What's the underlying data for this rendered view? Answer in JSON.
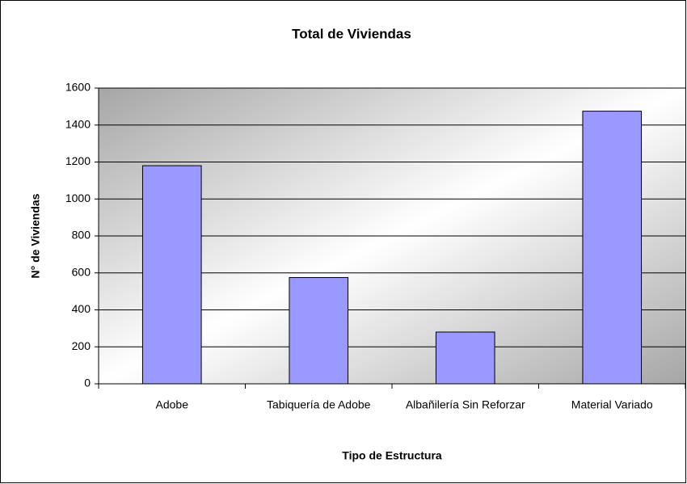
{
  "chart_data": {
    "type": "bar",
    "title": "Total de Viviendas",
    "x_label": "Tipo de Estructura",
    "y_label": "N° de Viviendas",
    "categories": [
      "Adobe",
      "Tabiquería de Adobe",
      "Albañilería Sin Reforzar",
      "Material Variado"
    ],
    "values": [
      1180,
      575,
      280,
      1475
    ],
    "color": "#9999ff",
    "ylim": [
      0,
      1600
    ],
    "yticks": [
      0,
      200,
      400,
      600,
      800,
      1000,
      1200,
      1400,
      1600
    ],
    "grid": true
  }
}
